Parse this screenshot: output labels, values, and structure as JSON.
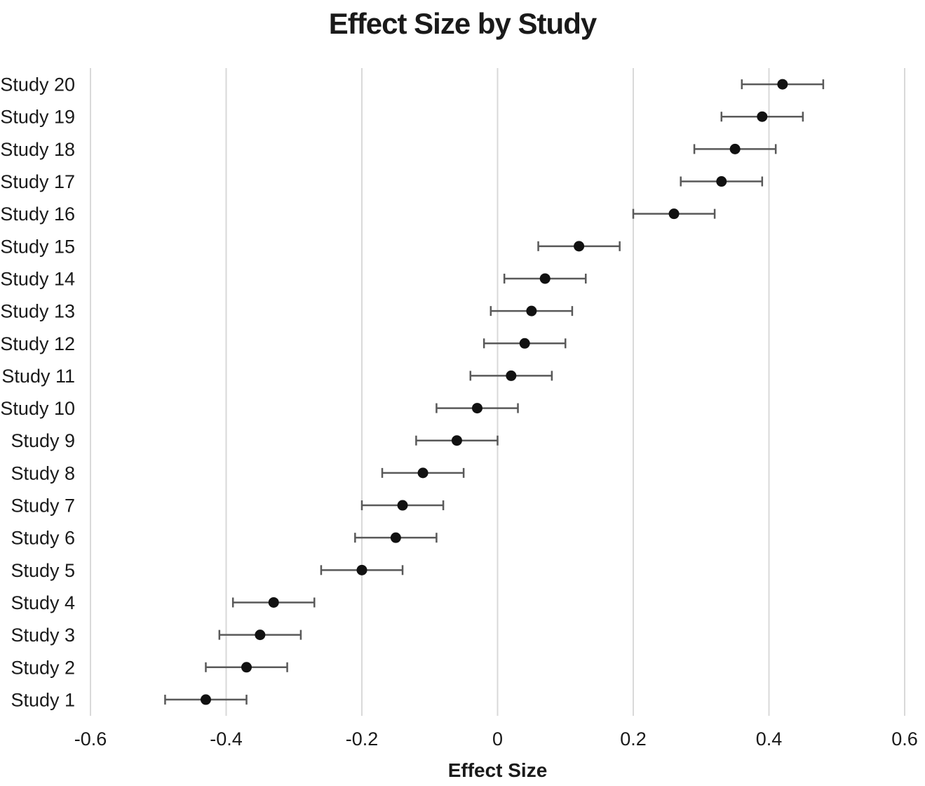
{
  "chart_data": {
    "type": "scatter",
    "subtype": "horizontal-dot-plot-with-error-bars",
    "title": "Effect Size by Study",
    "xlabel": "Effect Size",
    "ylabel": "",
    "xlim": [
      -0.6,
      0.6
    ],
    "xticks": [
      -0.6,
      -0.4,
      -0.2,
      0,
      0.2,
      0.4,
      0.6
    ],
    "xtick_labels": [
      "-0.6",
      "-0.4",
      "-0.2",
      "0",
      "0.2",
      "0.4",
      "0.6"
    ],
    "grid": "vertical-gridlines-only",
    "legend_position": "none",
    "error_margin": 0.06,
    "rows_top_to_bottom": [
      {
        "label": "Study 20",
        "effect": 0.42,
        "ci_low": 0.36,
        "ci_high": 0.48
      },
      {
        "label": "Study 19",
        "effect": 0.39,
        "ci_low": 0.33,
        "ci_high": 0.45
      },
      {
        "label": "Study 18",
        "effect": 0.35,
        "ci_low": 0.29,
        "ci_high": 0.41
      },
      {
        "label": "Study 17",
        "effect": 0.33,
        "ci_low": 0.27,
        "ci_high": 0.39
      },
      {
        "label": "Study 16",
        "effect": 0.26,
        "ci_low": 0.2,
        "ci_high": 0.32
      },
      {
        "label": "Study 15",
        "effect": 0.12,
        "ci_low": 0.06,
        "ci_high": 0.18
      },
      {
        "label": "Study 14",
        "effect": 0.07,
        "ci_low": 0.01,
        "ci_high": 0.13
      },
      {
        "label": "Study 13",
        "effect": 0.05,
        "ci_low": -0.01,
        "ci_high": 0.11
      },
      {
        "label": "Study 12",
        "effect": 0.04,
        "ci_low": -0.02,
        "ci_high": 0.1
      },
      {
        "label": "Study 11",
        "effect": 0.02,
        "ci_low": -0.04,
        "ci_high": 0.08
      },
      {
        "label": "Study 10",
        "effect": -0.03,
        "ci_low": -0.09,
        "ci_high": 0.03
      },
      {
        "label": "Study 9",
        "effect": -0.06,
        "ci_low": -0.12,
        "ci_high": 0.0
      },
      {
        "label": "Study 8",
        "effect": -0.11,
        "ci_low": -0.17,
        "ci_high": -0.05
      },
      {
        "label": "Study 7",
        "effect": -0.14,
        "ci_low": -0.2,
        "ci_high": -0.08
      },
      {
        "label": "Study 6",
        "effect": -0.15,
        "ci_low": -0.21,
        "ci_high": -0.09
      },
      {
        "label": "Study 5",
        "effect": -0.2,
        "ci_low": -0.26,
        "ci_high": -0.14
      },
      {
        "label": "Study 4",
        "effect": -0.33,
        "ci_low": -0.39,
        "ci_high": -0.27
      },
      {
        "label": "Study 3",
        "effect": -0.35,
        "ci_low": -0.41,
        "ci_high": -0.29
      },
      {
        "label": "Study 2",
        "effect": -0.37,
        "ci_low": -0.43,
        "ci_high": -0.31
      },
      {
        "label": "Study 1",
        "effect": -0.43,
        "ci_low": -0.49,
        "ci_high": -0.37
      }
    ],
    "colors": {
      "point": "#111111",
      "error_bar": "#595959",
      "gridline": "#d9d9d9",
      "text": "#1a1a1a",
      "background": "#ffffff"
    }
  }
}
